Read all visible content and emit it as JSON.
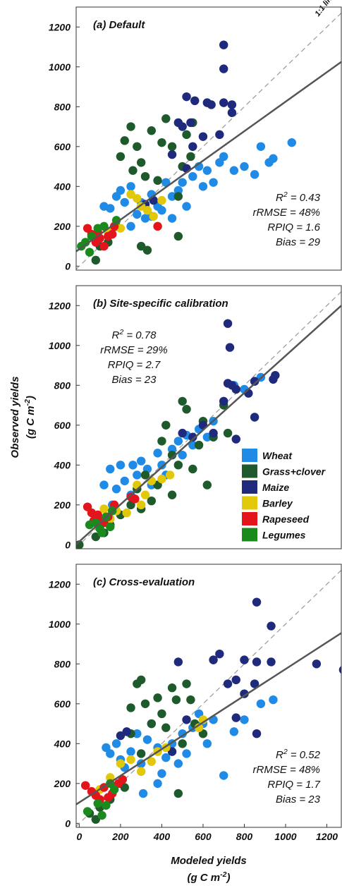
{
  "chart_data": [
    {
      "type": "scatter",
      "title": "(a) Default",
      "xlim": [
        -15,
        1270
      ],
      "ylim": [
        -20,
        1300
      ],
      "yticks": [
        0,
        200,
        400,
        600,
        800,
        1000,
        1200
      ],
      "identity_line": true,
      "identity_label": "1:1 line",
      "fit_line": {
        "x": [
          -15,
          1270
        ],
        "y": [
          74,
          1025
        ]
      },
      "annotations": [
        [
          "R",
          "2",
          " = 0.43"
        ],
        "rRMSE = 48%",
        "RPIQ = 1.6",
        "Bias = 29"
      ],
      "annotation_corner": "lower right",
      "series": [
        {
          "name": "Wheat",
          "color": "#1f8be6",
          "x": [
            120,
            150,
            180,
            200,
            220,
            250,
            280,
            300,
            320,
            350,
            380,
            400,
            420,
            450,
            480,
            500,
            520,
            550,
            580,
            600,
            620,
            650,
            680,
            700,
            750,
            800,
            850,
            880,
            920,
            940,
            1030,
            250,
            350,
            450
          ],
          "values": [
            300,
            290,
            350,
            380,
            320,
            400,
            260,
            320,
            240,
            360,
            300,
            280,
            420,
            350,
            380,
            420,
            300,
            450,
            500,
            400,
            480,
            420,
            520,
            550,
            480,
            500,
            460,
            600,
            520,
            540,
            620,
            200,
            250,
            240
          ]
        },
        {
          "name": "Grass+clover",
          "color": "#1e5a2b",
          "x": [
            80,
            100,
            140,
            180,
            200,
            220,
            250,
            280,
            300,
            320,
            350,
            380,
            420,
            450,
            480,
            500,
            520,
            540,
            550,
            300,
            330,
            480,
            400,
            260
          ],
          "values": [
            30,
            100,
            120,
            200,
            550,
            630,
            700,
            600,
            520,
            450,
            680,
            430,
            740,
            600,
            350,
            500,
            660,
            550,
            720,
            100,
            80,
            150,
            620,
            480
          ]
        },
        {
          "name": "Maize",
          "color": "#202a7c",
          "x": [
            700,
            700,
            520,
            560,
            620,
            640,
            700,
            740,
            740,
            480,
            500,
            540,
            450,
            520,
            550,
            600,
            680,
            320,
            360
          ],
          "values": [
            1110,
            990,
            850,
            830,
            820,
            810,
            820,
            810,
            770,
            720,
            700,
            720,
            560,
            490,
            600,
            650,
            660,
            310,
            330
          ]
        },
        {
          "name": "Barley",
          "color": "#e2c80a",
          "x": [
            140,
            170,
            200,
            250,
            300,
            330,
            360,
            380,
            400,
            280
          ],
          "values": [
            170,
            200,
            190,
            360,
            300,
            280,
            250,
            200,
            330,
            340
          ]
        },
        {
          "name": "Rapeseed",
          "color": "#e3141b",
          "x": [
            40,
            60,
            80,
            90,
            100,
            120,
            140,
            160,
            170,
            380
          ],
          "values": [
            190,
            160,
            120,
            170,
            140,
            100,
            150,
            160,
            200,
            200
          ]
        },
        {
          "name": "Legumes",
          "color": "#1b8a1d",
          "x": [
            10,
            30,
            60,
            90,
            120,
            180,
            50
          ],
          "values": [
            100,
            120,
            150,
            190,
            200,
            230,
            70
          ]
        }
      ]
    },
    {
      "type": "scatter",
      "title": "(b) Site-specific calibration",
      "xlim": [
        -15,
        1270
      ],
      "ylim": [
        -20,
        1300
      ],
      "yticks": [
        0,
        200,
        400,
        600,
        800,
        1000,
        1200
      ],
      "identity_line": true,
      "fit_line": {
        "x": [
          -15,
          1270
        ],
        "y": [
          2,
          1200
        ]
      },
      "y_label": "Observed yields",
      "y_unit": [
        "(g C m",
        "-2",
        ")"
      ],
      "annotations": [
        [
          "R",
          "2",
          " = 0.78"
        ],
        "rRMSE = 29%",
        "RPIQ = 2.7",
        "Bias = 23"
      ],
      "annotation_corner": "upper left",
      "legend": true,
      "series": [
        {
          "name": "Wheat",
          "color": "#1f8be6",
          "x": [
            120,
            150,
            180,
            200,
            220,
            250,
            280,
            300,
            330,
            350,
            380,
            400,
            420,
            450,
            480,
            500,
            520,
            550,
            580,
            620,
            650,
            700,
            750,
            800,
            850,
            880,
            160,
            260
          ],
          "values": [
            300,
            380,
            280,
            400,
            320,
            250,
            350,
            420,
            380,
            300,
            460,
            400,
            350,
            480,
            520,
            450,
            550,
            500,
            580,
            540,
            620,
            720,
            800,
            780,
            820,
            840,
            200,
            400
          ]
        },
        {
          "name": "Grass+clover",
          "color": "#1e5a2b",
          "x": [
            80,
            120,
            150,
            200,
            250,
            280,
            320,
            350,
            380,
            400,
            420,
            450,
            480,
            500,
            520,
            550,
            580,
            600,
            620,
            650,
            700,
            720,
            450,
            300,
            0
          ],
          "values": [
            40,
            60,
            100,
            150,
            200,
            280,
            350,
            220,
            300,
            520,
            600,
            450,
            400,
            720,
            680,
            380,
            500,
            620,
            300,
            540,
            700,
            560,
            250,
            180,
            0
          ]
        },
        {
          "name": "Maize",
          "color": "#202a7c",
          "x": [
            720,
            730,
            720,
            740,
            760,
            820,
            850,
            950,
            940,
            760,
            850,
            700,
            650,
            600,
            550,
            500
          ],
          "values": [
            1110,
            990,
            810,
            800,
            780,
            760,
            820,
            850,
            830,
            530,
            640,
            720,
            560,
            600,
            540,
            560
          ]
        },
        {
          "name": "Barley",
          "color": "#e2c80a",
          "x": [
            120,
            150,
            180,
            230,
            280,
            300,
            320,
            350,
            400,
            440
          ],
          "values": [
            180,
            130,
            170,
            160,
            300,
            200,
            250,
            320,
            330,
            350
          ]
        },
        {
          "name": "Rapeseed",
          "color": "#e3141b",
          "x": [
            40,
            60,
            70,
            90,
            100,
            120,
            140,
            170,
            250,
            270
          ],
          "values": [
            190,
            160,
            120,
            150,
            130,
            110,
            140,
            200,
            240,
            230
          ]
        },
        {
          "name": "Legumes",
          "color": "#1b8a1d",
          "x": [
            50,
            80,
            100,
            110,
            130,
            160,
            150
          ],
          "values": [
            100,
            110,
            80,
            60,
            140,
            170,
            90
          ]
        }
      ]
    },
    {
      "type": "scatter",
      "title": "(c) Cross-evaluation",
      "xlim": [
        -15,
        1270
      ],
      "ylim": [
        -20,
        1300
      ],
      "yticks": [
        0,
        200,
        400,
        600,
        800,
        1000,
        1200
      ],
      "xticks": [
        0,
        200,
        400,
        600,
        800,
        1000,
        1200
      ],
      "identity_line": true,
      "fit_line": {
        "x": [
          -15,
          1270
        ],
        "y": [
          95,
          955
        ]
      },
      "x_label": "Modeled yields",
      "x_unit": [
        "(g C m",
        "-2",
        ")"
      ],
      "annotations": [
        [
          "R",
          "2",
          " = 0.52"
        ],
        "rRMSE = 48%",
        "RPIQ = 1.7",
        "Bias = 23"
      ],
      "annotation_corner": "lower right",
      "series": [
        {
          "name": "Wheat",
          "color": "#1f8be6",
          "x": [
            130,
            150,
            180,
            200,
            220,
            250,
            280,
            300,
            330,
            350,
            380,
            400,
            420,
            450,
            480,
            500,
            520,
            550,
            580,
            600,
            620,
            650,
            700,
            750,
            800,
            880,
            940,
            310,
            380
          ],
          "values": [
            380,
            350,
            400,
            320,
            280,
            360,
            450,
            300,
            420,
            500,
            380,
            250,
            330,
            400,
            300,
            450,
            350,
            480,
            550,
            500,
            400,
            520,
            240,
            460,
            520,
            600,
            620,
            150,
            200
          ]
        },
        {
          "name": "Grass+clover",
          "color": "#1e5a2b",
          "x": [
            50,
            80,
            100,
            150,
            200,
            220,
            250,
            280,
            300,
            320,
            350,
            380,
            400,
            420,
            450,
            470,
            480,
            500,
            520,
            540,
            560,
            600,
            300,
            250
          ],
          "values": [
            50,
            20,
            80,
            120,
            200,
            180,
            580,
            700,
            720,
            600,
            500,
            630,
            550,
            480,
            680,
            620,
            150,
            400,
            700,
            620,
            500,
            450,
            350,
            450
          ]
        },
        {
          "name": "Maize",
          "color": "#202a7c",
          "x": [
            860,
            930,
            680,
            650,
            480,
            720,
            760,
            800,
            860,
            930,
            1150,
            1280,
            800,
            860,
            760,
            850,
            450,
            520,
            200,
            230
          ],
          "values": [
            1110,
            990,
            850,
            820,
            810,
            700,
            720,
            820,
            810,
            810,
            800,
            770,
            650,
            450,
            530,
            700,
            360,
            520,
            440,
            460
          ]
        },
        {
          "name": "Barley",
          "color": "#e2c80a",
          "x": [
            100,
            150,
            200,
            250,
            300,
            350,
            380,
            420,
            600,
            580
          ],
          "values": [
            170,
            230,
            300,
            320,
            260,
            310,
            360,
            380,
            520,
            480
          ]
        },
        {
          "name": "Rapeseed",
          "color": "#e3141b",
          "x": [
            30,
            60,
            80,
            100,
            120,
            140,
            160,
            190,
            210
          ],
          "values": [
            190,
            160,
            140,
            120,
            180,
            130,
            150,
            200,
            220
          ]
        },
        {
          "name": "Legumes",
          "color": "#1b8a1d",
          "x": [
            40,
            90,
            130,
            150,
            170,
            110
          ],
          "values": [
            60,
            100,
            90,
            200,
            170,
            40
          ]
        }
      ]
    }
  ]
}
